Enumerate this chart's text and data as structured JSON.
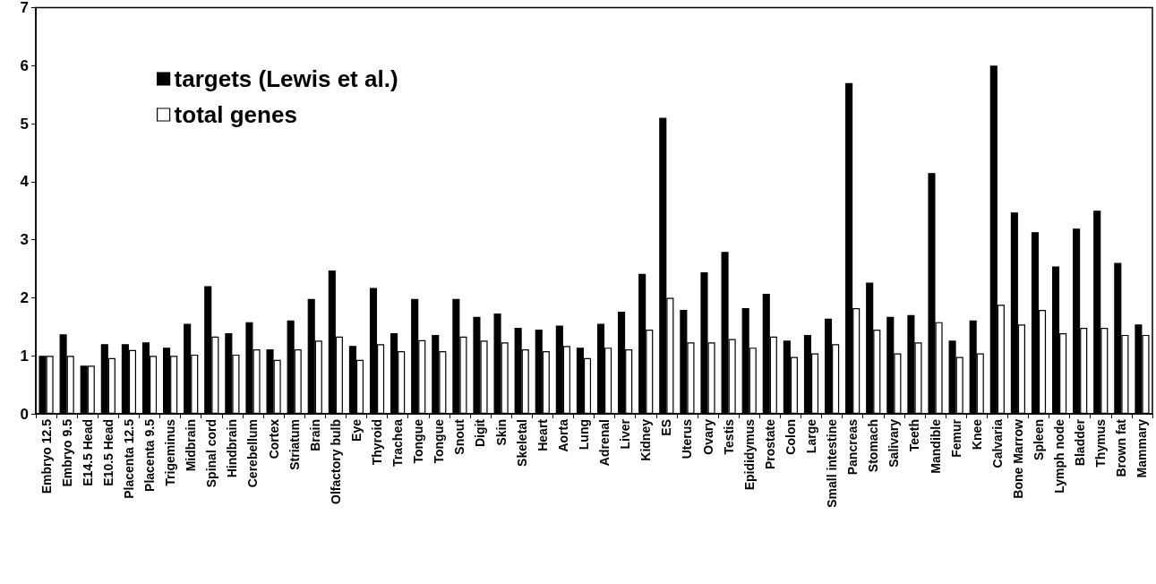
{
  "chart_data": {
    "type": "bar",
    "categories": [
      "Embryo 12.5",
      "Embryo 9.5",
      "E14.5 Head",
      "E10.5 Head",
      "Placenta 12.5",
      "Placenta 9.5",
      "Trigeminus",
      "Midbrain",
      "Spinal cord",
      "Hindbrain",
      "Cerebellum",
      "Cortex",
      "Striatum",
      "Brain",
      "Olfactory bulb",
      "Eye",
      "Thyroid",
      "Trachea",
      "Tongue",
      "Tongue",
      "Snout",
      "Digit",
      "Skin",
      "Skeletal",
      "Heart",
      "Aorta",
      "Lung",
      "Adrenal",
      "Liver",
      "Kidney",
      "ES",
      "Uterus",
      "Ovary",
      "Testis",
      "Epididymus",
      "Prostate",
      "Colon",
      "Large",
      "Small intestine",
      "Pancreas",
      "Stomach",
      "Salivary",
      "Teeth",
      "Mandible",
      "Femur",
      "Knee",
      "Calvaria",
      "Bone Marrow",
      "Spleen",
      "Lymph node",
      "Bladder",
      "Thymus",
      "Brown fat",
      "Mammary"
    ],
    "series": [
      {
        "name": "targets (Lewis et al.)",
        "color": "#000000",
        "values": [
          1.0,
          1.37,
          0.83,
          1.2,
          1.2,
          1.23,
          1.14,
          1.55,
          2.2,
          1.39,
          1.58,
          1.11,
          1.61,
          1.98,
          2.47,
          1.17,
          2.17,
          1.39,
          1.98,
          1.36,
          1.98,
          1.67,
          1.73,
          1.48,
          1.45,
          1.52,
          1.14,
          1.55,
          1.76,
          2.41,
          5.1,
          1.79,
          2.44,
          2.79,
          1.82,
          2.07,
          1.26,
          1.36,
          1.64,
          5.7,
          2.26,
          1.67,
          1.7,
          4.15,
          1.26,
          1.61,
          6.0,
          3.47,
          3.13,
          2.54,
          3.19,
          3.5,
          2.6,
          1.54
        ]
      },
      {
        "name": "total genes",
        "color": "#ffffff",
        "values": [
          1.0,
          1.0,
          0.83,
          0.96,
          1.1,
          1.0,
          1.0,
          1.02,
          1.33,
          1.02,
          1.11,
          0.93,
          1.11,
          1.26,
          1.33,
          0.93,
          1.2,
          1.08,
          1.27,
          1.08,
          1.33,
          1.26,
          1.23,
          1.11,
          1.08,
          1.17,
          0.96,
          1.14,
          1.11,
          1.45,
          2.0,
          1.23,
          1.23,
          1.29,
          1.14,
          1.33,
          0.98,
          1.04,
          1.2,
          1.82,
          1.45,
          1.04,
          1.23,
          1.58,
          0.98,
          1.04,
          1.88,
          1.54,
          1.79,
          1.39,
          1.48,
          1.48,
          1.36,
          1.36
        ]
      }
    ],
    "ylim": [
      0,
      7
    ],
    "yticks": [
      0,
      1,
      2,
      3,
      4,
      5,
      6,
      7
    ],
    "grid": false,
    "legend": "top left"
  }
}
